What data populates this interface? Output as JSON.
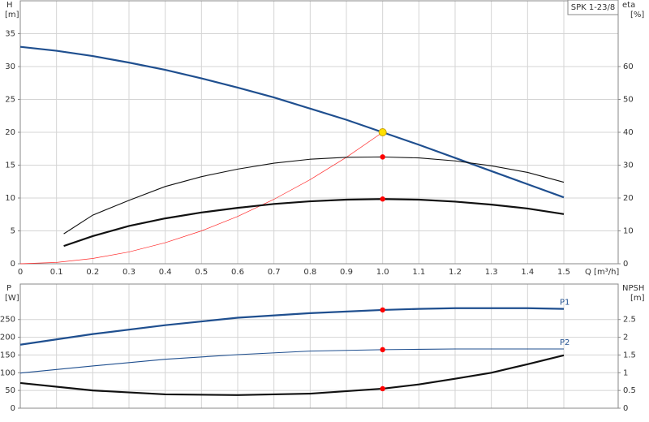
{
  "chart_data": [
    {
      "type": "line",
      "title": "SPK 1-23/8",
      "y_label": "H",
      "y_unit": "[m]",
      "y2_label": "eta",
      "y2_unit": "[%]",
      "x_label": "Q [m³/h]",
      "x": [
        0,
        0.1,
        0.2,
        0.3,
        0.4,
        0.5,
        0.6,
        0.7,
        0.8,
        0.9,
        1.0,
        1.1,
        1.2,
        1.3,
        1.4,
        1.5
      ],
      "xlim": [
        0,
        1.65
      ],
      "xticks": [
        0,
        0.1,
        0.2,
        0.3,
        0.4,
        0.5,
        0.6,
        0.7,
        0.8,
        0.9,
        {
          "value": 1,
          "label": "1.0"
        },
        1.1,
        1.2,
        1.3,
        1.4,
        1.5
      ],
      "ylim": [
        0,
        40
      ],
      "yticks": [
        0,
        5,
        10,
        15,
        20,
        25,
        30,
        35
      ],
      "y2lim": [
        0,
        80
      ],
      "y2ticks": [
        0,
        10,
        20,
        30,
        40,
        50,
        60
      ],
      "grid": true,
      "series": [
        {
          "color": "#1f4f8f",
          "style": "thick",
          "values": [
            33.0,
            32.4,
            31.6,
            30.6,
            29.5,
            28.2,
            26.8,
            25.3,
            23.6,
            21.9,
            20.0,
            18.1,
            16.1,
            14.1,
            12.1,
            10.1
          ]
        },
        {
          "color": "#ff2a2a",
          "style": "hair",
          "values": [
            0,
            0.2,
            0.8,
            1.8,
            3.2,
            5,
            7.2,
            9.8,
            12.8,
            16.2,
            20,
            null,
            null,
            null,
            null,
            null
          ]
        },
        {
          "color": "#111111",
          "style": "thin",
          "axis": "y2",
          "x": [
            0.12,
            0.2,
            0.3,
            0.4,
            0.5,
            0.6,
            0.7,
            0.8,
            0.9,
            1.0,
            1.1,
            1.2,
            1.3,
            1.4,
            1.5
          ],
          "values": [
            9.1,
            14.8,
            19.3,
            23.5,
            26.5,
            28.8,
            30.6,
            31.8,
            32.4,
            32.5,
            32.2,
            31.3,
            29.8,
            27.8,
            24.8
          ]
        },
        {
          "color": "#111111",
          "style": "thick",
          "axis": "y2",
          "x": [
            0.12,
            0.2,
            0.3,
            0.4,
            0.5,
            0.6,
            0.7,
            0.8,
            0.9,
            1.0,
            1.1,
            1.2,
            1.3,
            1.4,
            1.5
          ],
          "values": [
            5.4,
            8.4,
            11.5,
            13.8,
            15.6,
            17.0,
            18.2,
            19.0,
            19.5,
            19.7,
            19.5,
            18.9,
            18.0,
            16.8,
            15.1
          ]
        }
      ],
      "points": [
        {
          "x": 1.0,
          "y": 32.5,
          "axis": "y2",
          "color": "#ff0000"
        },
        {
          "x": 1.0,
          "y": 19.7,
          "axis": "y2",
          "color": "#ff0000"
        },
        {
          "x": 1.0,
          "y": 20,
          "color": "#ffe000"
        }
      ]
    },
    {
      "type": "line",
      "y_label": "P",
      "y_unit": "[W]",
      "y2_label": "NPSH",
      "y2_unit": "[m]",
      "x": [
        0,
        0.2,
        0.4,
        0.6,
        0.8,
        1.0,
        1.1,
        1.2,
        1.3,
        1.4,
        1.5
      ],
      "xlim": [
        0,
        1.65
      ],
      "ylim": [
        0,
        350
      ],
      "yticks": [
        0,
        50,
        100,
        150,
        200,
        250
      ],
      "y2lim": [
        0,
        3.5
      ],
      "y2ticks": [
        0,
        0.5,
        1,
        1.5,
        2,
        2.5
      ],
      "grid": true,
      "series": [
        {
          "name": "P1",
          "color": "#1f4f8f",
          "style": "thick",
          "values": [
            179,
            209,
            234,
            255,
            268,
            277,
            280,
            282,
            282,
            282,
            280
          ]
        },
        {
          "name": "P2",
          "color": "#1f4f8f",
          "style": "thin",
          "values": [
            99,
            119,
            138,
            151,
            161,
            165,
            166,
            167,
            167,
            167,
            167
          ]
        },
        {
          "color": "#111111",
          "style": "thick",
          "axis": "y2",
          "values": [
            0.71,
            0.5,
            0.39,
            0.37,
            0.41,
            0.55,
            0.67,
            0.83,
            1.0,
            1.24,
            1.49
          ]
        }
      ],
      "points": [
        {
          "x": 1.0,
          "y": 277,
          "color": "#ff0000"
        },
        {
          "x": 1.0,
          "y": 165,
          "color": "#ff0000"
        },
        {
          "x": 1.0,
          "y": 0.55,
          "axis": "y2",
          "color": "#ff0000"
        }
      ]
    }
  ]
}
